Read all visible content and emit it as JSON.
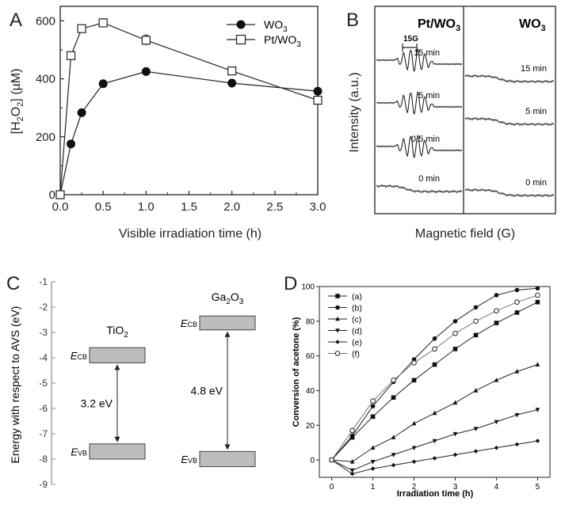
{
  "panels": {
    "A": {
      "letter": "A"
    },
    "B": {
      "letter": "B"
    },
    "C": {
      "letter": "C"
    },
    "D": {
      "letter": "D"
    }
  },
  "chart_data": [
    {
      "panel": "A",
      "type": "line",
      "xlabel": "Visible irradiation time (h)",
      "ylabel": "[H2O2] (µM)",
      "ylabel_parts": {
        "pre": "[H",
        "sub1": "2",
        "mid": "O",
        "sub2": "2",
        "post": "] (µM)"
      },
      "xlim": [
        0,
        3
      ],
      "ylim": [
        0,
        650
      ],
      "xticks": [
        "0.0",
        "0.5",
        "1.0",
        "1.5",
        "2.0",
        "2.5",
        "3.0"
      ],
      "xtick_values": [
        0,
        0.5,
        1.0,
        1.5,
        2.0,
        2.5,
        3.0
      ],
      "yticks": [
        "0",
        "200",
        "400",
        "600"
      ],
      "ytick_values": [
        0,
        200,
        400,
        600
      ],
      "legend_position": "top-right",
      "series": [
        {
          "name": "WO3",
          "name_parts": {
            "base": "WO",
            "sub": "3"
          },
          "marker": "filled-circle",
          "x": [
            0,
            0.125,
            0.25,
            0.5,
            1.0,
            2.0,
            3.0
          ],
          "y": [
            0,
            175,
            283,
            383,
            425,
            385,
            357
          ]
        },
        {
          "name": "Pt/WO3",
          "name_parts": {
            "base": "Pt/WO",
            "sub": "3"
          },
          "marker": "open-square",
          "x": [
            0,
            0.125,
            0.25,
            0.5,
            1.0,
            2.0,
            3.0
          ],
          "y": [
            0,
            480,
            573,
            593,
            533,
            427,
            326
          ]
        }
      ]
    },
    {
      "panel": "B",
      "type": "line",
      "xlabel": "Magnetic field (G)",
      "ylabel": "Intensity (a.u.)",
      "scale_label": "15G",
      "columns": [
        {
          "title": "Pt/WO3",
          "title_parts": {
            "base": "Pt/WO",
            "sub": "3"
          },
          "spectra": [
            {
              "label": "15 min",
              "signal": true
            },
            {
              "label": "5 min",
              "signal": true
            },
            {
              "label": "0.5 min",
              "signal": true
            },
            {
              "label": "0 min",
              "signal": false
            }
          ]
        },
        {
          "title": "WO3",
          "title_parts": {
            "base": "WO",
            "sub": "3"
          },
          "spectra": [
            {
              "label": "15 min",
              "signal": false
            },
            {
              "label": "5 min",
              "signal": false
            },
            {
              "label": "0 min",
              "signal": false
            }
          ]
        }
      ]
    },
    {
      "panel": "C",
      "type": "diagram",
      "ylabel": "Energy with respect to AVS (eV)",
      "ylim": [
        -9,
        -1
      ],
      "yticks": [
        "-1",
        "-2",
        "-3",
        "-4",
        "-5",
        "-6",
        "-7",
        "-8",
        "-9"
      ],
      "ytick_values": [
        -1,
        -2,
        -3,
        -4,
        -5,
        -6,
        -7,
        -8,
        -9
      ],
      "materials": [
        {
          "name": "TiO2",
          "name_parts": {
            "base": "TiO",
            "sub": "2"
          },
          "cb_top": -3.6,
          "cb_bottom": -4.2,
          "vb_top": -7.4,
          "vb_bottom": -8.0,
          "cb_label": {
            "base": "E",
            "sub": "CB"
          },
          "vb_label": {
            "base": "E",
            "sub": "VB"
          },
          "gap": "3.2 eV"
        },
        {
          "name": "Ga2O3",
          "name_parts": {
            "base": "Ga",
            "sub1": "2",
            "mid": "O",
            "sub2": "3"
          },
          "cb_top": -2.35,
          "cb_bottom": -2.9,
          "vb_top": -7.7,
          "vb_bottom": -8.3,
          "cb_label": {
            "base": "E",
            "sub": "CB"
          },
          "vb_label": {
            "base": "E",
            "sub": "VB"
          },
          "gap": "4.8 eV"
        }
      ]
    },
    {
      "panel": "D",
      "type": "line",
      "xlabel": "Irradiation time (h)",
      "ylabel": "Conversion of acetone (%)",
      "xlim": [
        -0.3,
        5.3
      ],
      "ylim": [
        -10,
        100
      ],
      "xticks": [
        "0",
        "1",
        "2",
        "3",
        "4",
        "5"
      ],
      "xtick_values": [
        0,
        1,
        2,
        3,
        4,
        5
      ],
      "yticks": [
        "0",
        "20",
        "40",
        "60",
        "80",
        "100"
      ],
      "ytick_values": [
        0,
        20,
        40,
        60,
        80,
        100
      ],
      "legend_position": "top-left",
      "x": [
        0,
        0.5,
        1,
        1.5,
        2,
        2.5,
        3,
        3.5,
        4,
        4.5,
        5
      ],
      "series": [
        {
          "name": "(a)",
          "marker": "filled-square",
          "y": [
            0,
            13,
            25,
            36,
            46,
            55,
            64,
            72,
            79,
            85,
            91
          ]
        },
        {
          "name": "(b)",
          "marker": "filled-circle",
          "y": [
            0,
            14,
            31,
            45,
            58,
            70,
            80,
            88,
            95,
            98,
            99
          ]
        },
        {
          "name": "(c)",
          "marker": "filled-triangle-up",
          "y": [
            0,
            -1,
            7,
            13,
            21,
            27,
            33,
            40,
            46,
            51,
            55
          ]
        },
        {
          "name": "(d)",
          "marker": "filled-triangle-down",
          "y": [
            0,
            -6,
            -1,
            3,
            7,
            11,
            15,
            18,
            22,
            26,
            29
          ]
        },
        {
          "name": "(e)",
          "marker": "filled-diamond",
          "y": [
            0,
            -8,
            -5,
            -3,
            -1,
            1,
            3,
            5,
            7,
            9,
            11
          ]
        },
        {
          "name": "(f)",
          "marker": "open-circle",
          "y": [
            0,
            17,
            34,
            46,
            56,
            64,
            73,
            80,
            86,
            91,
            95
          ]
        }
      ]
    }
  ]
}
